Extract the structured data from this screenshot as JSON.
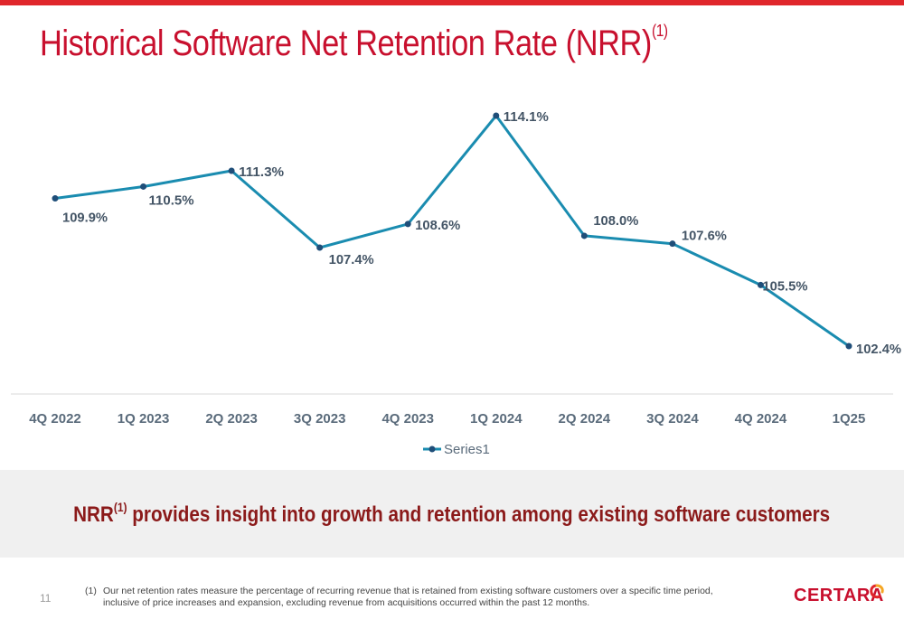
{
  "slide": {
    "title": "Historical Software Net Retention Rate (NRR)",
    "title_sup": "(1)",
    "callout_main": "NRR",
    "callout_sup": "(1)",
    "callout_rest": " provides insight into growth and retention among existing software customers",
    "page_number": "11",
    "footnote_mark": "(1)",
    "footnote_text": "Our net retention rates measure the percentage of recurring revenue that is retained from existing software customers over a specific time period, inclusive of price increases and expansion, excluding revenue from acquisitions occurred within the past 12 months.",
    "logo_text": "CERTARA"
  },
  "colors": {
    "accent_red": "#c8102e",
    "top_bar": "#e0262b",
    "series": "#1a8cb0",
    "marker": "#1f4e79",
    "label_text": "#445566",
    "axis_text": "#5a6b7b",
    "callout_text": "#8b1a1a",
    "band": "#f0f0f0"
  },
  "chart_data": {
    "type": "line",
    "categories": [
      "4Q 2022",
      "1Q 2023",
      "2Q 2023",
      "3Q 2023",
      "4Q 2023",
      "1Q 2024",
      "2Q 2024",
      "3Q 2024",
      "4Q 2024",
      "1Q25"
    ],
    "series": [
      {
        "name": "Series1",
        "values": [
          109.9,
          110.5,
          111.3,
          107.4,
          108.6,
          114.1,
          108.0,
          107.6,
          105.5,
          102.4
        ],
        "labels": [
          "109.9%",
          "110.5%",
          "111.3%",
          "107.4%",
          "108.6%",
          "114.1%",
          "108.0%",
          "107.6%",
          "105.5%",
          "102.4%"
        ]
      }
    ],
    "legend": "bottom-center",
    "grid": false
  }
}
